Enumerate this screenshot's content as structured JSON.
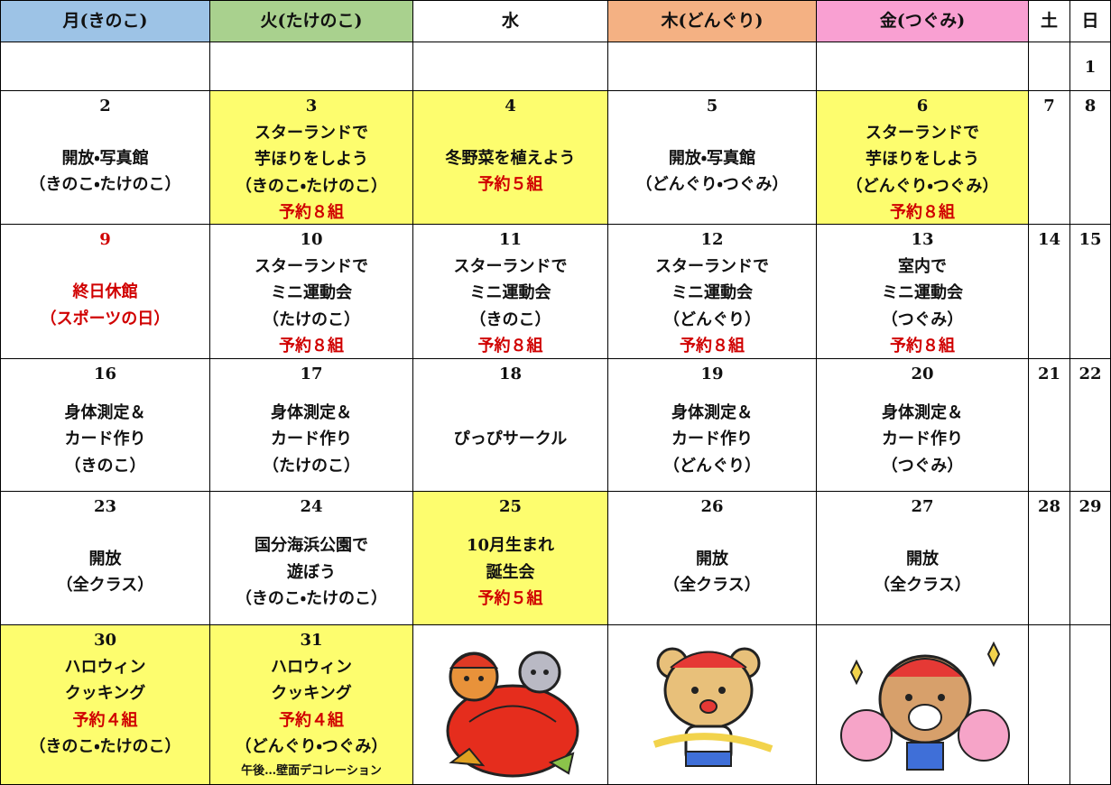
{
  "calendar": {
    "header": [
      "月(きのこ)",
      "火(たけのこ)",
      "水",
      "木(どんぐり)",
      "金(つぐみ)",
      "土",
      "日"
    ],
    "rows": [
      [
        null,
        null,
        null,
        null,
        null,
        null,
        {
          "day": 1
        }
      ],
      [
        {
          "day": 2,
          "lines": [
            "開放・写真館",
            "（きのこ・たけのこ）"
          ]
        },
        {
          "day": 3,
          "lines": [
            "スターランドで",
            "芋ほりをしよう",
            "（きのこ・たけのこ）",
            "予約８組"
          ]
        },
        {
          "day": 4,
          "lines": [
            "冬野菜を植えよう",
            "予約５組"
          ]
        },
        {
          "day": 5,
          "lines": [
            "開放・写真館",
            "（どんぐり・つぐみ）"
          ]
        },
        {
          "day": 6,
          "lines": [
            "スターランドで",
            "芋ほりをしよう",
            "（どんぐり・つぐみ）",
            "予約８組"
          ]
        },
        {
          "day": 7
        },
        {
          "day": 8
        }
      ],
      [
        {
          "day": 9,
          "lines": [
            "終日休館",
            "（スポーツの日）"
          ]
        },
        {
          "day": 10,
          "lines": [
            "スターランドで",
            "ミニ運動会",
            "（たけのこ）",
            "予約８組"
          ]
        },
        {
          "day": 11,
          "lines": [
            "スターランドで",
            "ミニ運動会",
            "（きのこ）",
            "予約８組"
          ]
        },
        {
          "day": 12,
          "lines": [
            "スターランドで",
            "ミニ運動会",
            "（どんぐり）",
            "予約８組"
          ]
        },
        {
          "day": 13,
          "lines": [
            "室内で",
            "ミニ運動会",
            "（つぐみ）",
            "予約８組"
          ]
        },
        {
          "day": 14
        },
        {
          "day": 15
        }
      ],
      [
        {
          "day": 16,
          "lines": [
            "身体測定＆",
            "カード作り",
            "（きのこ）"
          ]
        },
        {
          "day": 17,
          "lines": [
            "身体測定＆",
            "カード作り",
            "（たけのこ）"
          ]
        },
        {
          "day": 18,
          "lines": [
            "ぴっぴサークル"
          ]
        },
        {
          "day": 19,
          "lines": [
            "身体測定＆",
            "カード作り",
            "（どんぐり）"
          ]
        },
        {
          "day": 20,
          "lines": [
            "身体測定＆",
            "カード作り",
            "（つぐみ）"
          ]
        },
        {
          "day": 21
        },
        {
          "day": 22
        }
      ],
      [
        {
          "day": 23,
          "lines": [
            "開放",
            "（全クラス）"
          ]
        },
        {
          "day": 24,
          "lines": [
            "国分海浜公園で",
            "遊ぼう",
            "（きのこ・たけのこ）"
          ]
        },
        {
          "day": 25,
          "lines": [
            "10月生まれ",
            "誕生会",
            "予約５組"
          ]
        },
        {
          "day": 26,
          "lines": [
            "開放",
            "（全クラス）"
          ]
        },
        {
          "day": 27,
          "lines": [
            "開放",
            "（全クラス）"
          ]
        },
        {
          "day": 28
        },
        {
          "day": 29
        }
      ],
      [
        {
          "day": 30,
          "lines": [
            "ハロウィン",
            "クッキング",
            "予約４組",
            "（きのこ・たけのこ）"
          ]
        },
        {
          "day": 31,
          "lines": [
            "ハロウィン",
            "クッキング",
            "予約４組",
            "（どんぐり・つぐみ）",
            "午後…壁面デコレーション"
          ]
        },
        null,
        null,
        null,
        null,
        null
      ]
    ]
  }
}
